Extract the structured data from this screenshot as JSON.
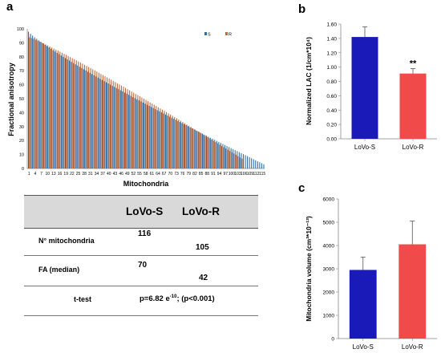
{
  "panels": {
    "a": "a",
    "b": "b",
    "c": "c"
  },
  "table": {
    "col1": "LoVo-S",
    "col2": "LoVo-R",
    "rows": [
      {
        "label": "N° mitochondria",
        "s": "116",
        "r": "105"
      },
      {
        "label": "FA (median)",
        "s": "70",
        "r": "42"
      }
    ],
    "ttest_label": "t-test",
    "ttest_value_prefix": "p=6.82 e",
    "ttest_value_exp": "-10",
    "ttest_value_suffix": "; (p<0.001)"
  },
  "chart_data": [
    {
      "type": "bar",
      "title": "",
      "xlabel": "Mitochondria",
      "ylabel": "Fractional anisotropy",
      "ylim": [
        0,
        100
      ],
      "yticks": [
        0,
        10,
        20,
        30,
        40,
        50,
        60,
        70,
        80,
        90,
        100
      ],
      "grid": false,
      "legend": {
        "placement": "top-right",
        "entries": [
          "S",
          "R"
        ]
      },
      "colors": {
        "S": "#2e6ea6",
        "R": "#c0663a"
      },
      "xtick_labels": [
        "1",
        "4",
        "7",
        "10",
        "13",
        "16",
        "19",
        "22",
        "25",
        "28",
        "31",
        "34",
        "37",
        "40",
        "43",
        "46",
        "49",
        "52",
        "55",
        "58",
        "61",
        "64",
        "67",
        "70",
        "73",
        "76",
        "79",
        "82",
        "85",
        "88",
        "91",
        "94",
        "97",
        "100",
        "103",
        "106",
        "109",
        "112",
        "115"
      ],
      "series": [
        {
          "name": "S",
          "count": 116,
          "start": 98,
          "end": 3,
          "curve": 0.87
        },
        {
          "name": "R",
          "count": 105,
          "start": 94,
          "end": 7,
          "curve": 1.1
        }
      ]
    },
    {
      "type": "bar",
      "title": "",
      "xlabel": "",
      "ylabel": "Normalized LAC (1/cm*10⁴)",
      "ylim": [
        0,
        1.6
      ],
      "yticks": [
        "0.00",
        "0.20",
        "0.40",
        "0.60",
        "0.80",
        "1.00",
        "1.20",
        "1.40",
        "1.60"
      ],
      "categories": [
        "LoVo-S",
        "LoVo-R"
      ],
      "values": [
        1.42,
        0.91
      ],
      "errors": [
        0.14,
        0.07
      ],
      "annotations": [
        {
          "category": "LoVo-R",
          "text": "**"
        }
      ],
      "colors": [
        "#1a1ab8",
        "#f04a4a"
      ]
    },
    {
      "type": "bar",
      "title": "",
      "xlabel": "",
      "ylabel": "Mitochondria volume (cm³*10⁻¹³)",
      "ylim": [
        0,
        6000
      ],
      "yticks": [
        "0",
        "1000",
        "2000",
        "3000",
        "4000",
        "5000",
        "6000"
      ],
      "categories": [
        "LoVo-S",
        "LoVo-R"
      ],
      "values": [
        2950,
        4050
      ],
      "errors": [
        550,
        1000
      ],
      "colors": [
        "#1a1ab8",
        "#f04a4a"
      ]
    }
  ]
}
